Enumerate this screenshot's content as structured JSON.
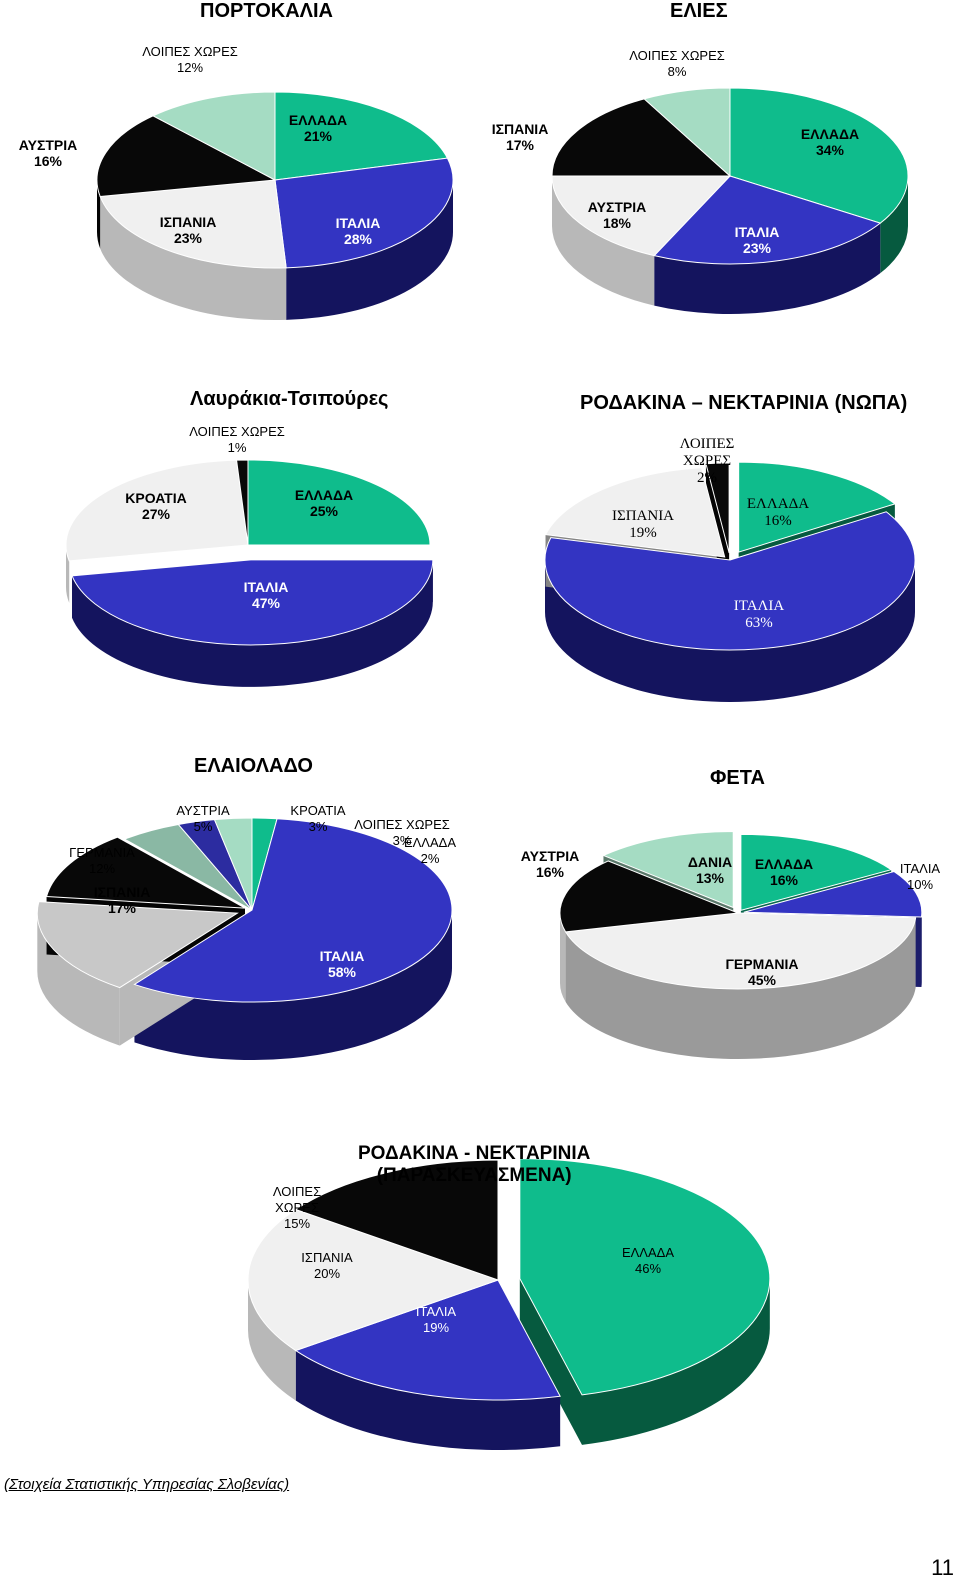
{
  "colors": {
    "greece": "#0fbc8c",
    "greece_side": "#065a3f",
    "italy": "#3334c2",
    "italy_side": "#14145e",
    "spain": "#f0f0f0",
    "spain_side": "#b8b8b8",
    "austria": "#f0f0f0",
    "austria_side": "#b8b8b8",
    "black": "#080808",
    "others": "#a5dcc3",
    "others_side": "#5f9a80",
    "croatia_mid": "#2c2ca0",
    "germany": "#f0f0f0",
    "germany_side": "#9a9a9a"
  },
  "chart_data": [
    {
      "type": "pie",
      "title": "ΠΟΡΤΟΚΑΛΙΑ",
      "labels": [
        "ΕΛΛΑΔΑ",
        "ΙΤΑΛΙΑ",
        "ΙΣΠΑΝΙΑ",
        "ΑΥΣΤΡΙΑ",
        "ΛΟΙΠΕΣ ΧΩΡΕΣ"
      ],
      "values": [
        21,
        28,
        23,
        16,
        12
      ],
      "value_labels": [
        "21%",
        "28%",
        "23%",
        "16%",
        "12%"
      ],
      "colors": [
        "#0fbc8c",
        "#3334c2",
        "#f0f0f0",
        "#080808",
        "#a5dcc3"
      ]
    },
    {
      "type": "pie",
      "title": "ΕΛΙΕΣ",
      "labels": [
        "ΕΛΛΑΔΑ",
        "ΙΤΑΛΙΑ",
        "ΑΥΣΤΡΙΑ",
        "ΙΣΠΑΝΙΑ",
        "ΛΟΙΠΕΣ ΧΩΡΕΣ"
      ],
      "values": [
        34,
        23,
        18,
        17,
        8
      ],
      "value_labels": [
        "34%",
        "23%",
        "18%",
        "17%",
        "8%"
      ],
      "colors": [
        "#0fbc8c",
        "#3334c2",
        "#f0f0f0",
        "#080808",
        "#a5dcc3"
      ]
    },
    {
      "type": "pie",
      "title": "Λαυράκια-Τσιπούρες",
      "labels": [
        "ΕΛΛΑΔΑ",
        "ΙΤΑΛΙΑ",
        "ΚΡΟΑΤΙΑ",
        "ΛΟΙΠΕΣ ΧΩΡΕΣ"
      ],
      "values": [
        25,
        47,
        27,
        1
      ],
      "value_labels": [
        "25%",
        "47%",
        "27%",
        "1%"
      ],
      "colors": [
        "#0fbc8c",
        "#3334c2",
        "#f0f0f0",
        "#080808"
      ]
    },
    {
      "type": "pie",
      "title": "ΡΟΔΑΚΙΝΑ – ΝΕΚΤΑΡΙΝΙΑ (ΝΩΠΑ)",
      "labels": [
        "ΕΛΛΑΔΑ",
        "ΙΤΑΛΙΑ",
        "ΙΣΠΑΝΙΑ",
        "ΛΟΙΠΕΣ ΧΩΡΕΣ"
      ],
      "values": [
        16,
        63,
        19,
        2
      ],
      "value_labels": [
        "16%",
        "63%",
        "19%",
        "2%"
      ],
      "colors": [
        "#0fbc8c",
        "#3334c2",
        "#f0f0f0",
        "#080808"
      ]
    },
    {
      "type": "pie",
      "title": "ΕΛΑΙΟΛΑΔΟ",
      "labels": [
        "ΕΛΛΑΔΑ",
        "ΙΤΑΛΙΑ",
        "ΙΣΠΑΝΙΑ",
        "ΓΕΡΜΑΝΙΑ",
        "ΑΥΣΤΡΙΑ",
        "ΚΡΟΑΤΙΑ",
        "ΛΟΙΠΕΣ ΧΩΡΕΣ"
      ],
      "values": [
        2,
        58,
        17,
        12,
        5,
        3,
        3
      ],
      "value_labels": [
        "2%",
        "58%",
        "17%",
        "12%",
        "5%",
        "3%",
        "3%"
      ],
      "colors": [
        "#0fbc8c",
        "#3334c2",
        "#c8c8c8",
        "#080808",
        "#8ab8a4",
        "#2c2ca0",
        "#a5dcc3"
      ]
    },
    {
      "type": "pie",
      "title": "ΦΕΤΑ",
      "labels": [
        "ΕΛΛΑΔΑ",
        "ΙΤΑΛΙΑ",
        "ΓΕΡΜΑΝΙΑ",
        "ΑΥΣΤΡΙΑ",
        "ΔΑΝΙΑ"
      ],
      "values": [
        16,
        10,
        45,
        16,
        13
      ],
      "value_labels": [
        "16%",
        "10%",
        "45%",
        "16%",
        "13%"
      ],
      "colors": [
        "#0fbc8c",
        "#3334c2",
        "#f0f0f0",
        "#080808",
        "#a5dcc3"
      ]
    },
    {
      "type": "pie",
      "title": "ΡΟΔΑΚΙΝΑ - ΝΕΚΤΑΡΙΝΙΑ (ΠΑΡΑΣΚΕΥΑΣΜΕΝΑ)",
      "title_lines": [
        "ΡΟΔΑΚΙΝΑ - ΝΕΚΤΑΡΙΝΙΑ",
        "(ΠΑΡΑΣΚΕΥΑΣΜΕΝΑ)"
      ],
      "labels": [
        "ΕΛΛΑΔΑ",
        "ΙΤΑΛΙΑ",
        "ΙΣΠΑΝΙΑ",
        "ΛΟΙΠΕΣ ΧΩΡΕΣ"
      ],
      "values": [
        46,
        19,
        20,
        15
      ],
      "value_labels": [
        "46%",
        "19%",
        "20%",
        "15%"
      ],
      "colors": [
        "#0fbc8c",
        "#3334c2",
        "#f0f0f0",
        "#080808"
      ]
    }
  ],
  "footer": {
    "source": "(Στοιχεία Στατιστικής Υπηρεσίας Σλοβενίας)",
    "page_number": "11"
  }
}
